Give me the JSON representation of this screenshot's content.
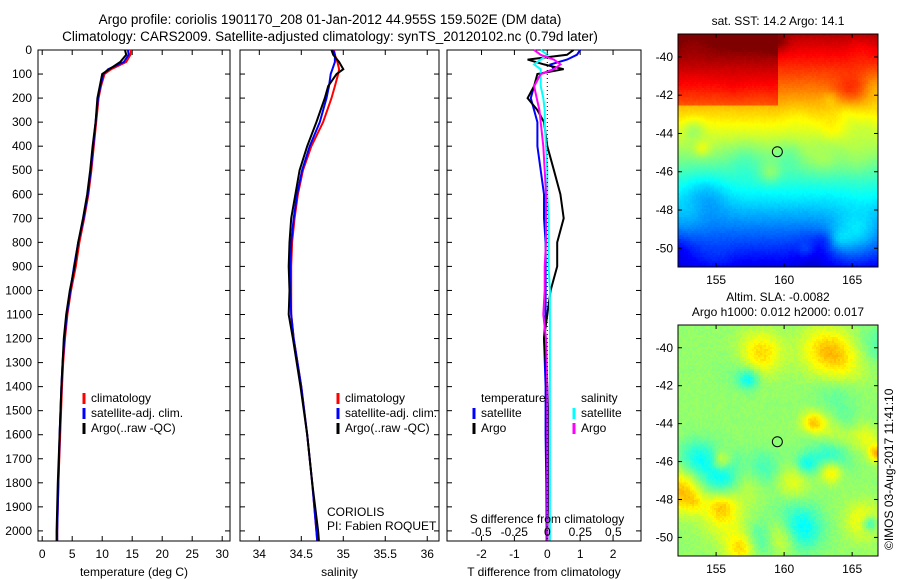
{
  "title_line1": "Argo profile: coriolis 1901170_208 01-Jan-2012 44.955S 159.502E (DM data)",
  "title_line2": "Climatology: CARS2009. Satellite-adjusted climatology: synTS_20120102.nc (0.79d later)",
  "timestamp": "©IMOS 03-Aug-2017 11:41:10",
  "colors": {
    "climatology": "#ff0000",
    "satellite": "#0000ff",
    "argo": "#000000",
    "sal_satellite": "#00ffff",
    "sal_argo": "#ff00ff"
  },
  "chart_data": [
    {
      "type": "line",
      "name": "temperature",
      "xlabel": "temperature (deg C)",
      "ylabel": "",
      "xlim": [
        -0.7,
        31.3
      ],
      "ylim": [
        2042,
        0
      ],
      "xticks": [
        0,
        5,
        10,
        15,
        20,
        25,
        30
      ],
      "xtick_labels": [
        "0",
        "5",
        "10",
        "15",
        "20",
        "25",
        "30"
      ],
      "yticks": [
        0,
        100,
        200,
        300,
        400,
        500,
        600,
        700,
        800,
        900,
        1000,
        1100,
        1200,
        1300,
        1400,
        1500,
        1600,
        1700,
        1800,
        1900,
        2000
      ],
      "ytick_labels": [
        "0",
        "100",
        "200",
        "300",
        "400",
        "500",
        "600",
        "700",
        "800",
        "900",
        "1000",
        "1100",
        "1200",
        "1300",
        "1400",
        "1500",
        "1600",
        "1700",
        "1800",
        "1900",
        "2000"
      ],
      "legend": [
        "climatology",
        "satellite-adj. clim.",
        "Argo(..raw -QC)"
      ],
      "legend_placement": "lower-center",
      "depth": [
        0,
        20,
        50,
        80,
        100,
        150,
        200,
        300,
        400,
        500,
        600,
        700,
        800,
        900,
        1000,
        1100,
        1200,
        1300,
        1400,
        1600,
        1800,
        2000,
        2040
      ],
      "series": [
        {
          "name": "climatology",
          "color_key": "climatology",
          "values": [
            14.8,
            14.7,
            14.0,
            11.5,
            10.4,
            9.8,
            9.4,
            9.0,
            8.6,
            8.2,
            7.7,
            7.0,
            6.2,
            5.6,
            4.8,
            4.2,
            3.8,
            3.5,
            3.3,
            3.0,
            2.7,
            2.5,
            2.5
          ]
        },
        {
          "name": "satellite-adj. clim.",
          "color_key": "satellite",
          "values": [
            14.3,
            14.4,
            13.6,
            11.0,
            10.2,
            9.7,
            9.3,
            8.9,
            8.5,
            8.1,
            7.6,
            6.9,
            6.0,
            5.3,
            4.7,
            4.1,
            3.7,
            3.4,
            3.2,
            2.9,
            2.7,
            2.5,
            2.5
          ]
        },
        {
          "name": "Argo(..raw -QC)",
          "color_key": "argo",
          "values": [
            13.8,
            14.0,
            13.0,
            11.2,
            10.0,
            9.6,
            9.2,
            8.9,
            8.4,
            8.0,
            7.5,
            6.8,
            6.0,
            5.4,
            4.6,
            4.0,
            3.6,
            3.4,
            3.2,
            2.9,
            2.6,
            2.4,
            2.4
          ]
        }
      ]
    },
    {
      "type": "line",
      "name": "salinity",
      "xlabel": "salinity",
      "xlim": [
        33.77,
        36.14
      ],
      "ylim": [
        2042,
        0
      ],
      "xticks": [
        34,
        34.5,
        35,
        35.5,
        36
      ],
      "xtick_labels": [
        "34",
        "34.5",
        "35",
        "35.5",
        "36"
      ],
      "legend": [
        "climatology",
        "satellite-adj. clim.",
        "Argo(..raw -QC)"
      ],
      "legend_placement": "lower-right",
      "annotation_line1": "CORIOLIS",
      "annotation_line2": "PI: Fabien ROQUET",
      "depth": [
        0,
        20,
        50,
        80,
        100,
        150,
        200,
        300,
        400,
        500,
        600,
        700,
        800,
        900,
        1000,
        1100,
        1200,
        1400,
        1600,
        1800,
        2000,
        2040
      ],
      "series": [
        {
          "name": "climatology",
          "color_key": "climatology",
          "values": [
            34.89,
            34.9,
            34.93,
            34.95,
            34.94,
            34.9,
            34.86,
            34.76,
            34.62,
            34.52,
            34.46,
            34.42,
            34.39,
            34.38,
            34.38,
            34.38,
            34.41,
            34.5,
            34.57,
            34.63,
            34.68,
            34.69
          ]
        },
        {
          "name": "satellite-adj. clim.",
          "color_key": "satellite",
          "values": [
            34.88,
            34.9,
            34.9,
            34.87,
            34.85,
            34.83,
            34.8,
            34.72,
            34.6,
            34.51,
            34.45,
            34.41,
            34.38,
            34.37,
            34.37,
            34.38,
            34.41,
            34.5,
            34.57,
            34.63,
            34.68,
            34.69
          ]
        },
        {
          "name": "Argo(..raw -QC)",
          "color_key": "argo",
          "values": [
            34.86,
            34.88,
            34.95,
            35.0,
            34.92,
            34.82,
            34.78,
            34.68,
            34.57,
            34.48,
            34.43,
            34.38,
            34.36,
            34.35,
            34.36,
            34.35,
            34.4,
            34.49,
            34.57,
            34.63,
            34.7,
            34.71
          ]
        }
      ]
    },
    {
      "type": "line",
      "name": "difference",
      "xlabel": "T difference from climatology",
      "xlim": [
        -3.05,
        2.85
      ],
      "ylim": [
        2042,
        0
      ],
      "xticks": [
        -2,
        -1,
        0,
        1,
        2
      ],
      "xtick_labels": [
        "-2",
        "-1",
        "0",
        "1",
        "2"
      ],
      "x2label": "S difference from climatology",
      "x2lim": [
        -0.76,
        0.71
      ],
      "x2ticks": [
        -0.5,
        -0.25,
        0,
        0.25,
        0.5
      ],
      "x2tick_labels": [
        "-0.5",
        "-0.25",
        "0",
        "0.25",
        "0.5"
      ],
      "legend_temperature_header": "temperature",
      "legend_salinity_header": "salinity",
      "legend": [
        "satellite",
        "Argo",
        "satellite",
        "Argo"
      ],
      "legend_placement": "lower-center",
      "depth": [
        0,
        20,
        40,
        60,
        80,
        100,
        150,
        200,
        250,
        300,
        400,
        500,
        600,
        700,
        800,
        900,
        1000,
        1100,
        1200,
        1400,
        1600,
        1800,
        2000,
        2040
      ],
      "series": [
        {
          "name": "T satellite",
          "color_key": "satellite",
          "axis": "T",
          "values": [
            1.0,
            0.9,
            0.6,
            0.1,
            0.2,
            -0.2,
            -0.4,
            -0.5,
            -0.4,
            -0.3,
            -0.3,
            -0.2,
            -0.1,
            -0.1,
            -0.05,
            -0.05,
            -0.05,
            -0.05,
            -0.1,
            -0.05,
            -0.05,
            -0.03,
            -0.02,
            -0.02
          ]
        },
        {
          "name": "T Argo",
          "color_key": "argo",
          "axis": "T",
          "values": [
            0.8,
            0.6,
            -0.6,
            -0.1,
            0.5,
            -0.3,
            -0.4,
            -0.6,
            -0.3,
            -0.1,
            0.0,
            0.2,
            0.4,
            0.5,
            0.3,
            0.3,
            0.1,
            0.0,
            -0.1,
            0.0,
            0.05,
            0.05,
            0.0,
            0.0
          ]
        },
        {
          "name": "S satellite",
          "color_key": "sal_satellite",
          "axis": "S",
          "values": [
            -0.05,
            0.0,
            -0.05,
            -0.1,
            -0.05,
            -0.05,
            -0.05,
            -0.03,
            -0.02,
            -0.02,
            -0.01,
            0.0,
            0.0,
            0.01,
            0.01,
            0.01,
            0.02,
            0.02,
            0.02,
            0.02,
            0.02,
            0.02,
            0.02,
            0.02
          ]
        },
        {
          "name": "S Argo",
          "color_key": "sal_argo",
          "axis": "S",
          "values": [
            -0.1,
            -0.05,
            0.05,
            0.1,
            0.05,
            -0.05,
            -0.1,
            -0.08,
            -0.06,
            -0.05,
            -0.03,
            -0.02,
            -0.01,
            -0.01,
            -0.01,
            -0.02,
            -0.02,
            -0.03,
            -0.01,
            0.0,
            0.0,
            0.0,
            0.0,
            0.0
          ]
        }
      ]
    },
    {
      "type": "heatmap",
      "name": "sst_map",
      "title": "sat. SST: 14.2 Argo: 14.1",
      "xlim": [
        152.2,
        166.9
      ],
      "ylim": [
        -50.98,
        -38.8
      ],
      "xticks": [
        155,
        160,
        165
      ],
      "xtick_labels": [
        "155",
        "160",
        "165"
      ],
      "yticks": [
        -40,
        -42,
        -44,
        -46,
        -48,
        -50
      ],
      "ytick_labels": [
        "-40",
        "-42",
        "-44",
        "-46",
        "-48",
        "-50"
      ],
      "marker": {
        "lon": 159.502,
        "lat": -44.955
      }
    },
    {
      "type": "heatmap",
      "name": "sla_map",
      "title_line1": "Altim. SLA: -0.0082",
      "title_line2": "Argo h1000: 0.012 h2000: 0.017",
      "xlim": [
        152.2,
        166.9
      ],
      "ylim": [
        -50.98,
        -38.8
      ],
      "xticks": [
        155,
        160,
        165
      ],
      "xtick_labels": [
        "155",
        "160",
        "165"
      ],
      "yticks": [
        -40,
        -42,
        -44,
        -46,
        -48,
        -50
      ],
      "ytick_labels": [
        "-40",
        "-42",
        "-44",
        "-46",
        "-48",
        "-50"
      ],
      "marker": {
        "lon": 159.502,
        "lat": -44.955
      }
    }
  ]
}
